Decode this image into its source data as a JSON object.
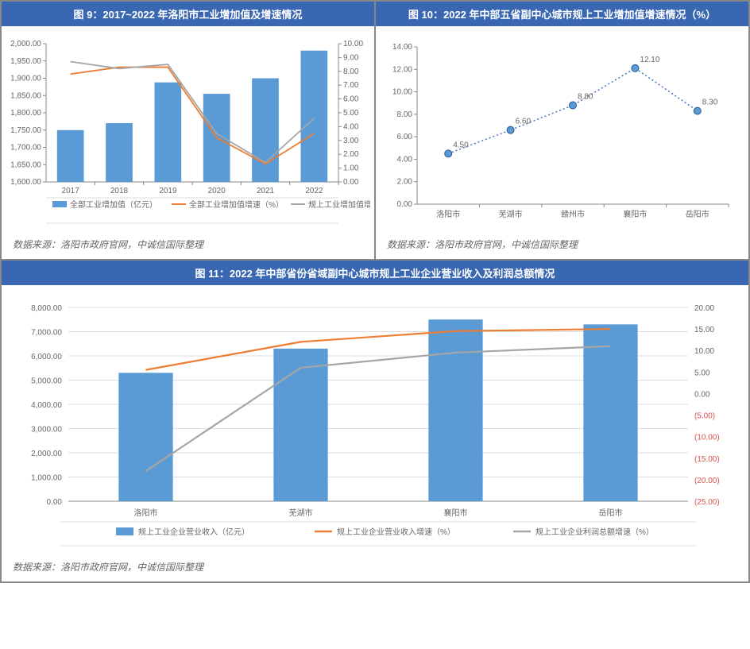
{
  "source_text": "数据来源：洛阳市政府官网，中诚信国际整理",
  "colors": {
    "title_bg": "#3a67b1",
    "bar_blue": "#5b9bd5",
    "line_orange": "#ed7d31",
    "line_gray": "#a5a5a5",
    "axis": "#888888",
    "tick": "#bbbbbb",
    "text": "#666666",
    "neg": "#d9534f",
    "marker_blue": "#4472c4"
  },
  "chart9": {
    "title": "图 9：2017~2022 年洛阳市工业增加值及增速情况",
    "type": "combo-bar-line-dual-axis",
    "categories": [
      "2017",
      "2018",
      "2019",
      "2020",
      "2021",
      "2022"
    ],
    "y_left": {
      "min": 1600,
      "max": 2000,
      "step": 50,
      "format": "0,0.00"
    },
    "y_right": {
      "min": 0,
      "max": 10,
      "step": 1,
      "format": "0.00"
    },
    "bars": {
      "label": "全部工业增加值（亿元）",
      "values": [
        1750,
        1770,
        1888,
        1855,
        1900,
        1980
      ],
      "color": "#5b9bd5"
    },
    "line1": {
      "label": "全部工业增加值增速（%）",
      "values": [
        7.8,
        8.3,
        8.3,
        3.2,
        1.3,
        3.5
      ],
      "color": "#ed7d31"
    },
    "line2": {
      "label": "规上工业增加值增速（%）",
      "values": [
        8.7,
        8.2,
        8.5,
        3.5,
        1.4,
        4.6
      ],
      "color": "#a5a5a5"
    },
    "bar_width": 0.55,
    "font_size_labels": 10
  },
  "chart10": {
    "title": "图 10：2022 年中部五省副中心城市规上工业增加值增速情况（%）",
    "type": "dotted-line-with-markers",
    "categories": [
      "洛阳市",
      "芜湖市",
      "赣州市",
      "襄阳市",
      "岳阳市"
    ],
    "y": {
      "min": 0,
      "max": 14,
      "step": 2,
      "format": "0.00"
    },
    "values": [
      4.5,
      6.6,
      8.8,
      12.1,
      8.3
    ],
    "value_labels": [
      "4.50",
      "6.60",
      "8.80",
      "12.10",
      "8.30"
    ],
    "line_color": "#4472c4",
    "marker_shape": "circle",
    "marker_fill": "#5b9bd5",
    "marker_stroke": "#2e5597",
    "dash": "2,3",
    "font_size_labels": 10
  },
  "chart11": {
    "title": "图 11：2022 年中部省份省域副中心城市规上工业企业营业收入及利润总额情况",
    "type": "combo-bar-line-dual-axis",
    "categories": [
      "洛阳市",
      "芜湖市",
      "襄阳市",
      "岳阳市"
    ],
    "y_left": {
      "min": 0,
      "max": 8000,
      "step": 1000,
      "format": "0,0.00"
    },
    "y_right": {
      "min": -25,
      "max": 20,
      "step": 5,
      "format": "paren-neg-0.00"
    },
    "bars": {
      "label": "规上工业企业营业收入（亿元）",
      "values": [
        5300,
        6300,
        7500,
        7300
      ],
      "color": "#5b9bd5"
    },
    "line1": {
      "label": "规上工业企业营业收入增速（%）",
      "values": [
        5.5,
        12.0,
        14.5,
        15.0
      ],
      "color": "#ed7d31"
    },
    "line2": {
      "label": "规上工业企业利润总额增速（%）",
      "values": [
        -18.0,
        6.0,
        9.5,
        11.0
      ],
      "color": "#a5a5a5"
    },
    "bar_width": 0.35,
    "font_size_labels": 11
  }
}
